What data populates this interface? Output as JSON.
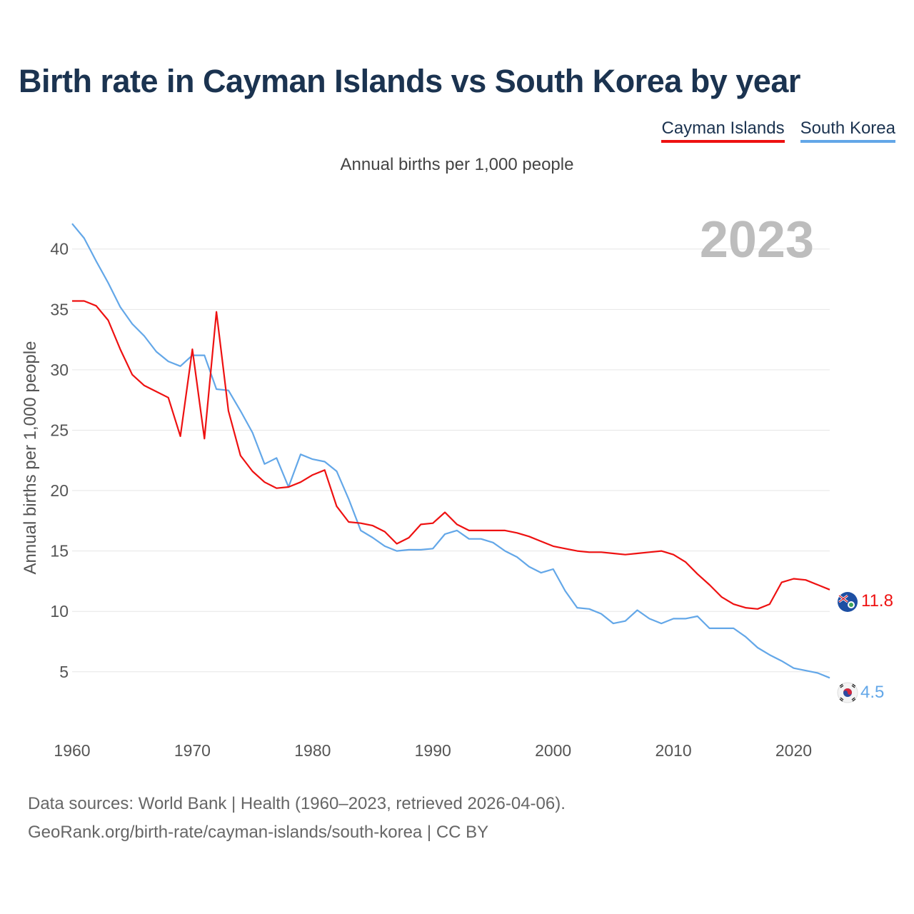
{
  "title": "Birth rate in Cayman Islands vs South Korea by year",
  "subtitle": "Annual births per 1,000 people",
  "legend": [
    {
      "label": "Cayman Islands",
      "color": "#ee1111"
    },
    {
      "label": "South Korea",
      "color": "#63a7e8"
    }
  ],
  "footer": {
    "line1": "Data sources: World Bank | Health (1960–2023, retrieved 2026-04-06).",
    "line2": "GeoRank.org/birth-rate/cayman-islands/south-korea | CC BY"
  },
  "chart_data": {
    "type": "line",
    "title": "Birth rate in Cayman Islands vs South Korea by year",
    "ylabel": "Annual births per 1,000 people",
    "xlabel": "",
    "year_label": "2023",
    "xlim": [
      1960,
      2023
    ],
    "ylim": [
      1.5,
      43
    ],
    "xticks": [
      1960,
      1970,
      1980,
      1990,
      2000,
      2010,
      2020
    ],
    "yticks": [
      5,
      10,
      15,
      20,
      25,
      30,
      35,
      40
    ],
    "grid": true,
    "x": [
      1960,
      1961,
      1962,
      1963,
      1964,
      1965,
      1966,
      1967,
      1968,
      1969,
      1970,
      1971,
      1972,
      1973,
      1974,
      1975,
      1976,
      1977,
      1978,
      1979,
      1980,
      1981,
      1982,
      1983,
      1984,
      1985,
      1986,
      1987,
      1988,
      1989,
      1990,
      1991,
      1992,
      1993,
      1994,
      1995,
      1996,
      1997,
      1998,
      1999,
      2000,
      2001,
      2002,
      2003,
      2004,
      2005,
      2006,
      2007,
      2008,
      2009,
      2010,
      2011,
      2012,
      2013,
      2014,
      2015,
      2016,
      2017,
      2018,
      2019,
      2020,
      2021,
      2022,
      2023
    ],
    "series": [
      {
        "name": "Cayman Islands",
        "color": "#ee1111",
        "end_label": "11.8",
        "values": [
          35.7,
          35.7,
          35.3,
          34.1,
          31.7,
          29.6,
          28.7,
          28.2,
          27.7,
          24.5,
          31.7,
          24.3,
          34.8,
          26.6,
          22.9,
          21.6,
          20.7,
          20.2,
          20.3,
          20.7,
          21.3,
          21.7,
          18.7,
          17.4,
          17.3,
          17.1,
          16.6,
          15.6,
          16.1,
          17.2,
          17.3,
          18.2,
          17.2,
          16.7,
          16.7,
          16.7,
          16.7,
          16.5,
          16.2,
          15.8,
          15.4,
          15.2,
          15.0,
          14.9,
          14.9,
          14.8,
          14.7,
          14.8,
          14.9,
          15.0,
          14.7,
          14.1,
          13.1,
          12.2,
          11.2,
          10.6,
          10.3,
          10.2,
          10.6,
          12.4,
          12.7,
          12.6,
          12.2,
          11.8
        ]
      },
      {
        "name": "South Korea",
        "color": "#63a7e8",
        "end_label": "4.5",
        "values": [
          42.1,
          40.9,
          39.0,
          37.2,
          35.2,
          33.8,
          32.8,
          31.5,
          30.7,
          30.3,
          31.2,
          31.2,
          28.4,
          28.3,
          26.6,
          24.8,
          22.2,
          22.7,
          20.3,
          23.0,
          22.6,
          22.4,
          21.6,
          19.3,
          16.7,
          16.1,
          15.4,
          15.0,
          15.1,
          15.1,
          15.2,
          16.4,
          16.7,
          16.0,
          16.0,
          15.7,
          15.0,
          14.5,
          13.7,
          13.2,
          13.5,
          11.7,
          10.3,
          10.2,
          9.8,
          9.0,
          9.2,
          10.1,
          9.4,
          9.0,
          9.4,
          9.4,
          9.6,
          8.6,
          8.6,
          8.6,
          7.9,
          7.0,
          6.4,
          5.9,
          5.3,
          5.1,
          4.9,
          4.5
        ]
      }
    ]
  }
}
